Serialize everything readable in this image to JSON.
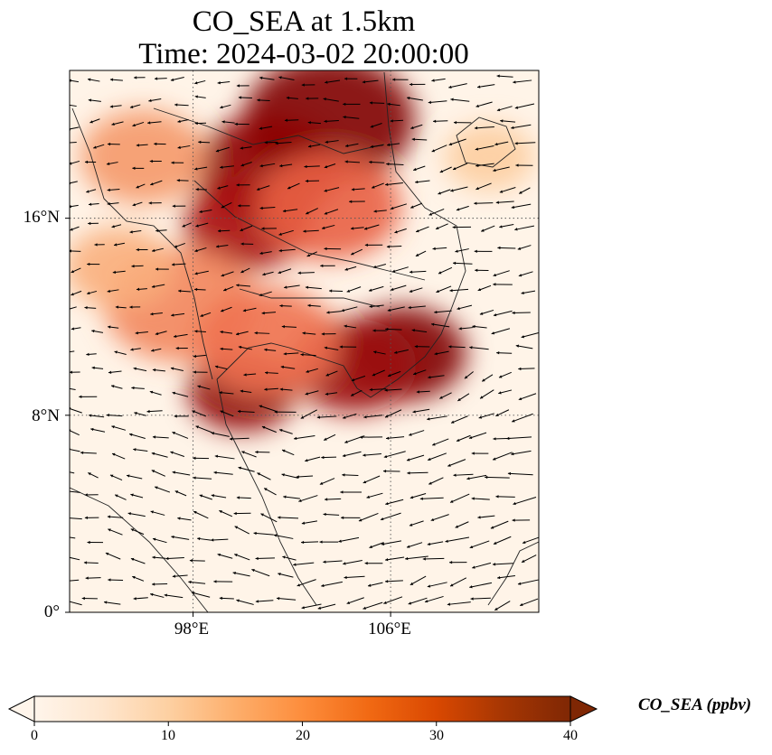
{
  "title": {
    "line1": "CO_SEA at 1.5km",
    "line2": "Time: 2024-03-02 20:00:00"
  },
  "map": {
    "lon_range": [
      93,
      112
    ],
    "lat_range": [
      0,
      22
    ],
    "gridlines": true,
    "lat_ticks": [
      {
        "value": 0,
        "label": "0°"
      },
      {
        "value": 8,
        "label": "8°N"
      },
      {
        "value": 16,
        "label": "16°N"
      }
    ],
    "lon_ticks": [
      {
        "value": 98,
        "label": "98°E"
      },
      {
        "value": 106,
        "label": "106°E"
      }
    ],
    "field": "CO_SEA concentration (ppbv) with wind vectors",
    "plumes": [
      {
        "lon": 103.5,
        "lat": 20.0,
        "value": 40
      },
      {
        "lon": 101.0,
        "lat": 18.0,
        "value": 38
      },
      {
        "lon": 100.2,
        "lat": 15.8,
        "value": 34
      },
      {
        "lon": 103.5,
        "lat": 16.5,
        "value": 24
      },
      {
        "lon": 106.5,
        "lat": 10.5,
        "value": 40
      },
      {
        "lon": 104.5,
        "lat": 10.0,
        "value": 36
      },
      {
        "lon": 100.0,
        "lat": 9.0,
        "value": 38
      },
      {
        "lon": 97.5,
        "lat": 12.5,
        "value": 20
      },
      {
        "lon": 96.0,
        "lat": 18.5,
        "value": 18
      },
      {
        "lon": 101.0,
        "lat": 11.0,
        "value": 22
      },
      {
        "lon": 95.0,
        "lat": 14.0,
        "value": 15
      },
      {
        "lon": 110.0,
        "lat": 18.5,
        "value": 10
      }
    ]
  },
  "colorbar": {
    "label": "CO_SEA (ppbv)",
    "min": 0,
    "max": 40,
    "extend": "both",
    "ticks": [
      {
        "value": 0,
        "label": "0"
      },
      {
        "value": 10,
        "label": "10"
      },
      {
        "value": 20,
        "label": "20"
      },
      {
        "value": 30,
        "label": "30"
      },
      {
        "value": 40,
        "label": "40"
      }
    ],
    "colormap": [
      "#fff5eb",
      "#fee6ce",
      "#fdd0a2",
      "#fdae6b",
      "#fd8d3c",
      "#f16913",
      "#d94801",
      "#a63603",
      "#7f2704"
    ],
    "data_colormap": [
      "#fff5eb",
      "#fee3c8",
      "#fdc692",
      "#f6a170",
      "#ee6a4a",
      "#d4362a",
      "#a80d0d",
      "#800000"
    ]
  }
}
